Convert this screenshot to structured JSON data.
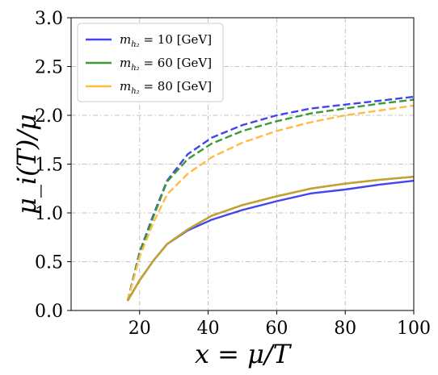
{
  "chart_data": {
    "type": "line",
    "xlabel": "x = μ/T",
    "ylabel": "μ_i(T)/μ",
    "xlim": [
      0,
      100
    ],
    "ylim": [
      0.0,
      3.0
    ],
    "x_ticks": [
      20,
      40,
      60,
      80,
      100
    ],
    "x_tick_labels": [
      "20",
      "40",
      "60",
      "80",
      "100"
    ],
    "y_ticks": [
      0.0,
      0.5,
      1.0,
      1.5,
      2.0,
      2.5,
      3.0
    ],
    "y_tick_labels": [
      "0.0",
      "0.5",
      "1.0",
      "1.5",
      "2.0",
      "2.5",
      "3.0"
    ],
    "grid": true,
    "legend_position": "top-left",
    "legend": [
      {
        "label": "m_{h2} = 10 [GeV]",
        "text_main": "m",
        "text_sub": "h₂",
        "text_rest": " = 10 [GeV]",
        "color": "#4444ee"
      },
      {
        "label": "m_{h2} = 60 [GeV]",
        "text_main": "m",
        "text_sub": "h₂",
        "text_rest": " = 60 [GeV]",
        "color": "#3a9a3a"
      },
      {
        "label": "m_{h2} = 80 [GeV]",
        "text_main": "m",
        "text_sub": "h₂",
        "text_rest": " = 80 [GeV]",
        "color": "#ffbb44"
      }
    ],
    "series": [
      {
        "legend_index": 0,
        "color": "#4444ee",
        "style": "dashed",
        "x": [
          16.5,
          20,
          24,
          28,
          34,
          41,
          50,
          60,
          70,
          80,
          90,
          100
        ],
        "y": [
          0.1,
          0.6,
          0.98,
          1.33,
          1.6,
          1.77,
          1.9,
          2.0,
          2.07,
          2.11,
          2.15,
          2.19
        ]
      },
      {
        "legend_index": 1,
        "color": "#3a9a3a",
        "style": "dashed",
        "x": [
          16.5,
          20,
          24,
          28,
          34,
          41,
          50,
          60,
          70,
          80,
          90,
          100
        ],
        "y": [
          0.1,
          0.59,
          0.96,
          1.32,
          1.55,
          1.71,
          1.84,
          1.94,
          2.02,
          2.07,
          2.12,
          2.16
        ]
      },
      {
        "legend_index": 2,
        "color": "#ffbb44",
        "style": "dashed",
        "x": [
          16.5,
          20,
          24,
          28,
          34,
          41,
          50,
          60,
          70,
          80,
          90,
          100
        ],
        "y": [
          0.1,
          0.55,
          0.9,
          1.19,
          1.4,
          1.57,
          1.72,
          1.84,
          1.93,
          2.0,
          2.05,
          2.1
        ]
      },
      {
        "legend_index": 0,
        "color": "#4444ee",
        "style": "solid",
        "x": [
          16.5,
          20,
          24,
          28,
          34,
          41,
          50,
          60,
          70,
          80,
          90,
          100
        ],
        "y": [
          0.1,
          0.31,
          0.51,
          0.68,
          0.82,
          0.93,
          1.03,
          1.12,
          1.2,
          1.24,
          1.29,
          1.33
        ]
      },
      {
        "legend_index": 1,
        "color": "#3a9a3a",
        "style": "solid",
        "x": [
          16.5,
          20,
          24,
          28,
          34,
          41,
          50,
          60,
          70,
          80,
          90,
          100
        ],
        "y": [
          0.1,
          0.31,
          0.51,
          0.68,
          0.83,
          0.97,
          1.08,
          1.17,
          1.25,
          1.3,
          1.34,
          1.37
        ]
      },
      {
        "legend_index": 2,
        "color": "#c8a030",
        "style": "solid",
        "x": [
          16.5,
          20,
          24,
          28,
          34,
          41,
          50,
          60,
          70,
          80,
          90,
          100
        ],
        "y": [
          0.1,
          0.31,
          0.51,
          0.68,
          0.83,
          0.97,
          1.08,
          1.17,
          1.25,
          1.3,
          1.34,
          1.37
        ]
      }
    ]
  }
}
